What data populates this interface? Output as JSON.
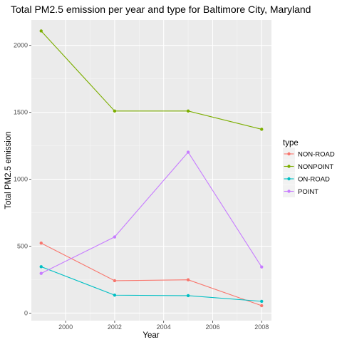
{
  "chart_data": {
    "type": "line",
    "title": "Total PM2.5 emission per year and type for Baltimore City, Maryland",
    "xlabel": "Year",
    "ylabel": "Total PM2.5 emission",
    "x": [
      1999,
      2002,
      2005,
      2008
    ],
    "xlim": [
      1998.6,
      2008.4
    ],
    "ylim": [
      -56,
      2190
    ],
    "x_ticks": [
      2000,
      2002,
      2004,
      2006,
      2008
    ],
    "x_tick_labels": [
      "2000",
      "2002",
      "2004",
      "2006",
      "2008"
    ],
    "y_ticks": [
      0,
      500,
      1000,
      1500,
      2000
    ],
    "y_tick_labels": [
      "0",
      "500",
      "1000",
      "1500",
      "2000"
    ],
    "grid": true,
    "legend_title": "type",
    "legend_position": "right",
    "series": [
      {
        "name": "NON-ROAD",
        "color": "#F8766D",
        "values": [
          522.9,
          242.3,
          248.9,
          55.8
        ]
      },
      {
        "name": "NONPOINT",
        "color": "#7CAE00",
        "values": [
          2107.6,
          1509.5,
          1509.5,
          1373.2
        ]
      },
      {
        "name": "ON-ROAD",
        "color": "#00BFC4",
        "values": [
          346.8,
          134.3,
          130.4,
          88.3
        ]
      },
      {
        "name": "POINT",
        "color": "#C77CFF",
        "values": [
          296.8,
          569.3,
          1202.5,
          344.98
        ]
      }
    ]
  }
}
